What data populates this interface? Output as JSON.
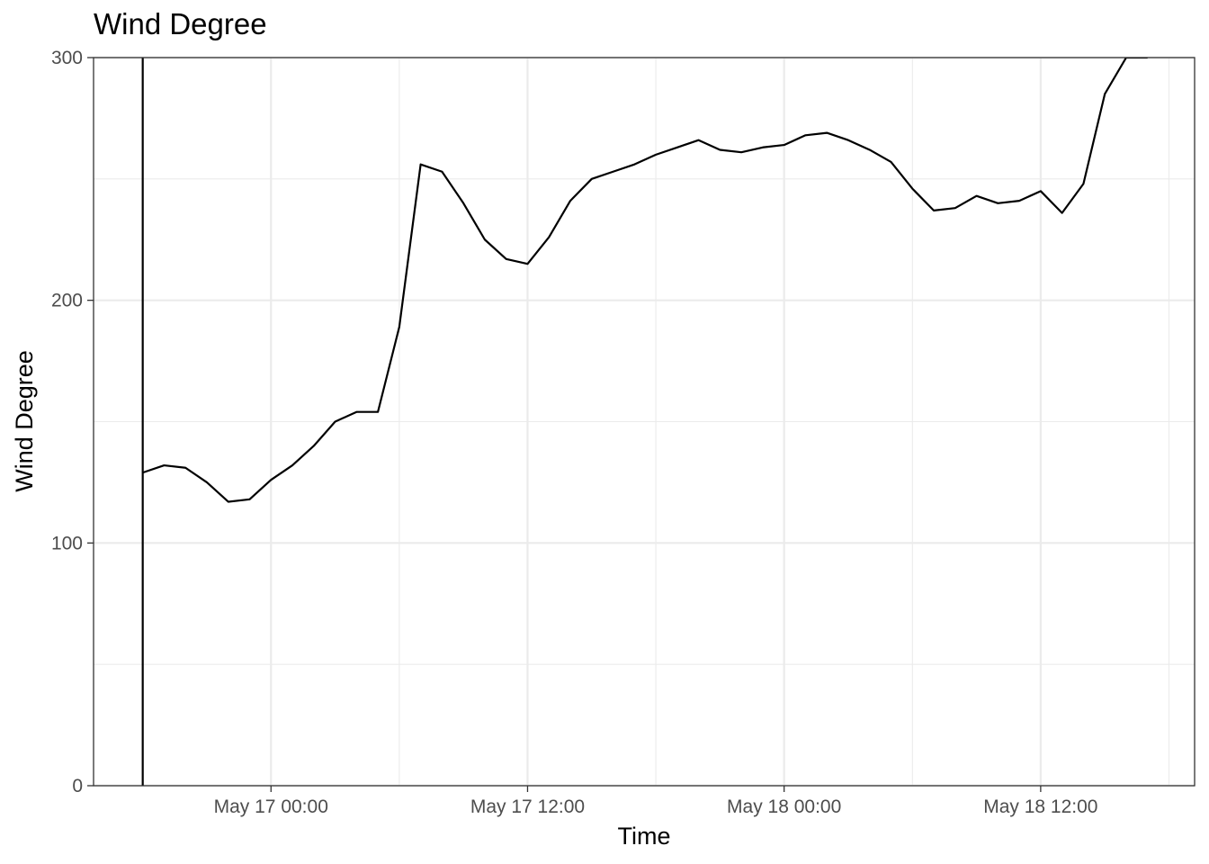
{
  "chart_data": {
    "type": "line",
    "title": "Wind Degree",
    "xlabel": "Time",
    "ylabel": "Wind Degree",
    "ylim": [
      0,
      300
    ],
    "xlim": [
      "2016-05-16 15:42",
      "2016-05-18 19:12"
    ],
    "y_ticks": [
      "0",
      "100",
      "200",
      "300"
    ],
    "x_ticks": [
      {
        "value": "2016-05-17 00:00",
        "label": "May 17 00:00"
      },
      {
        "value": "2016-05-17 12:00",
        "label": "May 17 12:00"
      },
      {
        "value": "2016-05-18 00:00",
        "label": "May 18 00:00"
      },
      {
        "value": "2016-05-18 12:00",
        "label": "May 18 12:00"
      }
    ],
    "grid": true,
    "vertical_line": {
      "x": "2016-05-16 18:00"
    },
    "series": [
      {
        "x": [
          "2016-05-16 18:00",
          "2016-05-16 19:00",
          "2016-05-16 20:00",
          "2016-05-16 21:00",
          "2016-05-16 22:00",
          "2016-05-16 23:00",
          "2016-05-17 00:00",
          "2016-05-17 01:00",
          "2016-05-17 02:00",
          "2016-05-17 03:00",
          "2016-05-17 04:00",
          "2016-05-17 05:00",
          "2016-05-17 06:00",
          "2016-05-17 07:00",
          "2016-05-17 08:00",
          "2016-05-17 09:00",
          "2016-05-17 10:00",
          "2016-05-17 11:00",
          "2016-05-17 12:00",
          "2016-05-17 13:00",
          "2016-05-17 14:00",
          "2016-05-17 15:00",
          "2016-05-17 16:00",
          "2016-05-17 17:00",
          "2016-05-17 18:00",
          "2016-05-17 19:00",
          "2016-05-17 20:00",
          "2016-05-17 21:00",
          "2016-05-17 22:00",
          "2016-05-17 23:00",
          "2016-05-18 00:00",
          "2016-05-18 01:00",
          "2016-05-18 02:00",
          "2016-05-18 03:00",
          "2016-05-18 04:00",
          "2016-05-18 05:00",
          "2016-05-18 06:00",
          "2016-05-18 07:00",
          "2016-05-18 08:00",
          "2016-05-18 09:00",
          "2016-05-18 10:00",
          "2016-05-18 11:00",
          "2016-05-18 12:00",
          "2016-05-18 13:00",
          "2016-05-18 14:00",
          "2016-05-18 15:00",
          "2016-05-18 16:00",
          "2016-05-18 17:00"
        ],
        "y": [
          129,
          132,
          131,
          125,
          117,
          118,
          126,
          132,
          140,
          150,
          154,
          154,
          189,
          256,
          253,
          240,
          225,
          217,
          215,
          226,
          241,
          250,
          253,
          256,
          260,
          263,
          266,
          262,
          261,
          263,
          264,
          268,
          269,
          266,
          262,
          257,
          246,
          237,
          238,
          243,
          240,
          241,
          245,
          236,
          248,
          285,
          300,
          300
        ]
      }
    ]
  }
}
